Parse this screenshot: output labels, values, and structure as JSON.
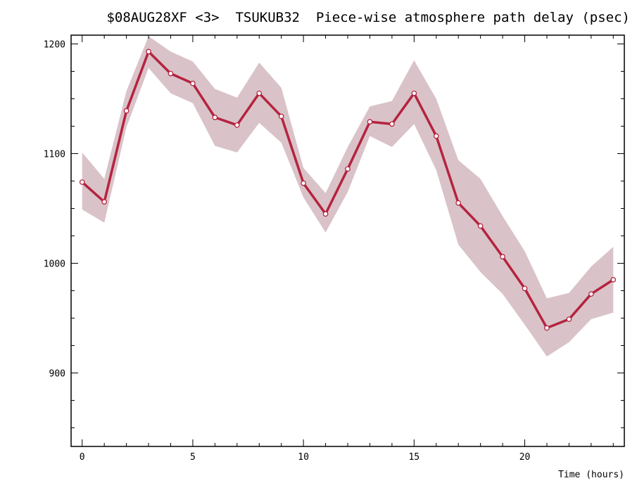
{
  "chart_data": {
    "type": "line",
    "title": "$08AUG28XF <3>  TSUKUB32  Piece-wise atmosphere path delay (psec)",
    "xlabel": "Time (hours)",
    "ylabel": "",
    "xlim": [
      -0.5,
      24.5
    ],
    "ylim": [
      833,
      1208
    ],
    "x_ticks": [
      0,
      5,
      10,
      15,
      20
    ],
    "y_ticks": [
      900,
      1000,
      1100,
      1200
    ],
    "grid": false,
    "series": [
      {
        "x": [
          0,
          1,
          2,
          3,
          4,
          5,
          6,
          7,
          8,
          9,
          10,
          11,
          12,
          13,
          14,
          15,
          16,
          17,
          18,
          19,
          20,
          21,
          22,
          23,
          24
        ],
        "values": [
          1074,
          1056,
          1139,
          1193,
          1173,
          1164,
          1133,
          1126,
          1155,
          1134,
          1073,
          1045,
          1086,
          1129,
          1127,
          1155,
          1116,
          1055,
          1034,
          1006,
          977,
          941,
          949,
          972,
          985
        ],
        "upper": [
          1101,
          1077,
          1157,
          1207,
          1193,
          1184,
          1159,
          1151,
          1183,
          1160,
          1087,
          1064,
          1106,
          1143,
          1148,
          1185,
          1150,
          1094,
          1077,
          1043,
          1011,
          968,
          973,
          997,
          1015
        ],
        "lower": [
          1049,
          1037,
          1124,
          1178,
          1155,
          1146,
          1107,
          1101,
          1128,
          1110,
          1060,
          1028,
          1065,
          1116,
          1106,
          1127,
          1085,
          1017,
          992,
          972,
          944,
          915,
          928,
          949,
          955
        ]
      }
    ],
    "colors": {
      "line": "#b5233f",
      "band": "#d9c3c8",
      "marker_fill": "#ffffff",
      "axis": "#000000"
    }
  }
}
